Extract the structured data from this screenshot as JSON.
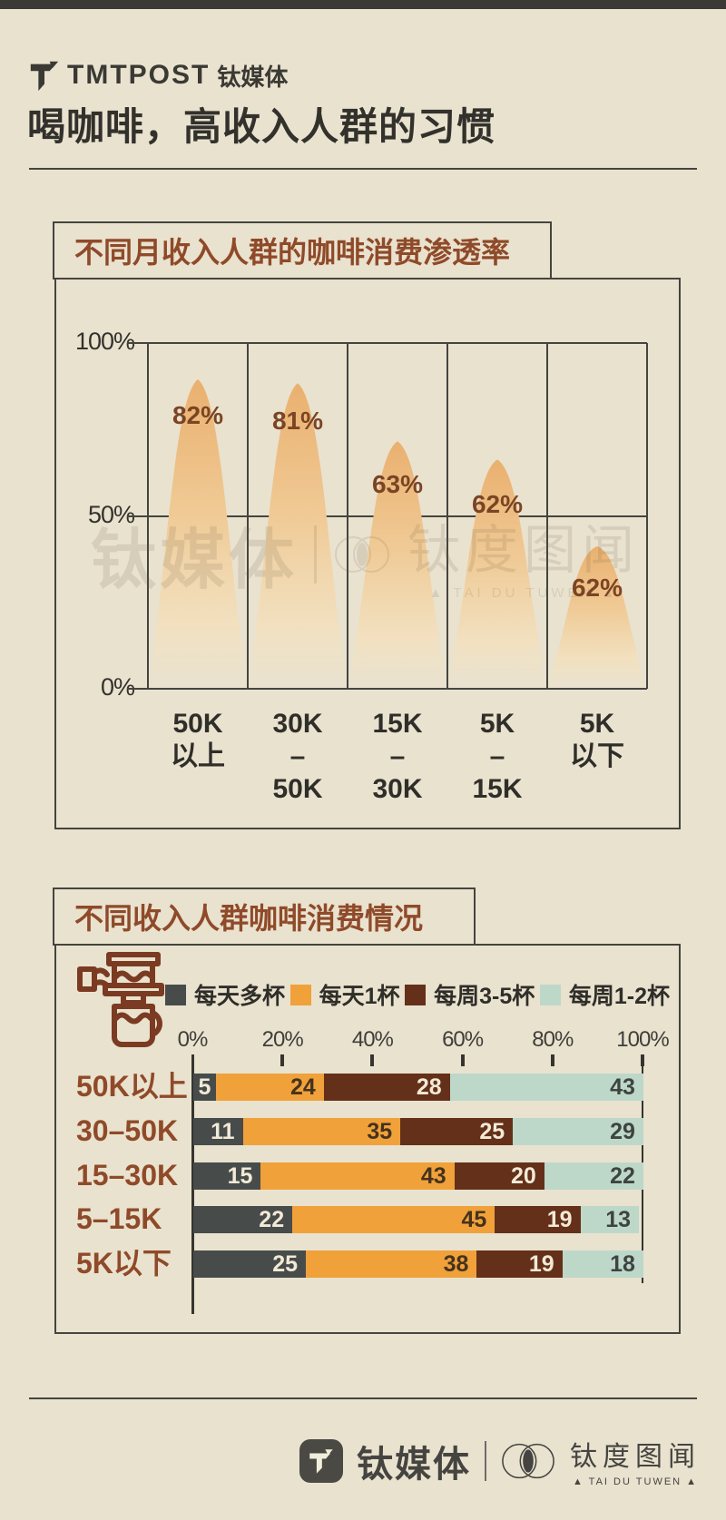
{
  "header": {
    "brand_en": "TMTPOST",
    "brand_cn": "钛媒体",
    "title": "喝咖啡，高收入人群的习惯"
  },
  "chart1": {
    "title": "不同月收入人群的咖啡消费渗透率",
    "y_ticks": [
      "100%",
      "50%",
      "0%"
    ],
    "categories": [
      "50K\n以上",
      "30K\n–\n50K",
      "15K\n–\n30K",
      "5K\n–\n15K",
      "5K\n以下"
    ],
    "values": [
      82,
      81,
      63,
      62,
      62
    ],
    "labels": [
      "82%",
      "81%",
      "63%",
      "62%",
      "62%"
    ],
    "visual_peak_fractions": [
      0.895,
      0.884,
      0.716,
      0.663,
      0.412
    ],
    "peak_color_top": "#eab06f",
    "peak_color_mid": "#f0cb97"
  },
  "chart2": {
    "title": "不同收入人群咖啡消费情况",
    "legend": [
      {
        "label": "每天多杯",
        "color": "#474c4b"
      },
      {
        "label": "每天1杯",
        "color": "#f0a13a"
      },
      {
        "label": "每周3-5杯",
        "color": "#643019"
      },
      {
        "label": "每周1-2杯",
        "color": "#bdd8c9"
      }
    ],
    "segment_text_colors": [
      "#f2ead6",
      "#45321d",
      "#f2ead6",
      "#3e4440"
    ],
    "x_ticks": [
      "0%",
      "20%",
      "40%",
      "60%",
      "80%",
      "100%"
    ],
    "rows": [
      {
        "label": "50K以上",
        "values": [
          5,
          24,
          28,
          43
        ]
      },
      {
        "label": "30–50K",
        "values": [
          11,
          35,
          25,
          29
        ]
      },
      {
        "label": "15–30K",
        "values": [
          15,
          43,
          20,
          22
        ]
      },
      {
        "label": "5–15K",
        "values": [
          22,
          45,
          19,
          13
        ]
      },
      {
        "label": "5K以下",
        "values": [
          25,
          38,
          19,
          18
        ]
      }
    ]
  },
  "watermark": {
    "part1": "钛媒体",
    "part2": "钛度图闻",
    "sub": "▲ TAI DU TUWEN ▲"
  },
  "footer": {
    "brand_cn": "钛媒体",
    "sub_brand": "钛度图闻",
    "sub_latin": "▲ TAI DU TUWEN ▲"
  },
  "chart_data": [
    {
      "type": "area",
      "title": "不同月收入人群的咖啡消费渗透率",
      "categories": [
        "50K以上",
        "30K–50K",
        "15K–30K",
        "5K–15K",
        "5K以下"
      ],
      "values": [
        82,
        81,
        63,
        62,
        62
      ],
      "unit": "%",
      "ylim": [
        0,
        100
      ],
      "y_gridlines": [
        0,
        50,
        100
      ],
      "legend_position": "none",
      "notes": "mountain/bell shaped orange gradient peaks, value labels inside peaks"
    },
    {
      "type": "bar",
      "subtype": "stacked-horizontal",
      "title": "不同收入人群咖啡消费情况",
      "categories": [
        "50K以上",
        "30–50K",
        "15–30K",
        "5–15K",
        "5K以下"
      ],
      "series": [
        {
          "name": "每天多杯",
          "color": "#474c4b",
          "values": [
            5,
            11,
            15,
            22,
            25
          ]
        },
        {
          "name": "每天1杯",
          "color": "#f0a13a",
          "values": [
            24,
            35,
            43,
            45,
            38
          ]
        },
        {
          "name": "每周3-5杯",
          "color": "#643019",
          "values": [
            28,
            25,
            20,
            19,
            19
          ]
        },
        {
          "name": "每周1-2杯",
          "color": "#bdd8c9",
          "values": [
            43,
            29,
            22,
            13,
            18
          ]
        }
      ],
      "xlim": [
        0,
        100
      ],
      "unit": "%",
      "x_ticks": [
        0,
        20,
        40,
        60,
        80,
        100
      ],
      "legend_position": "top"
    }
  ]
}
